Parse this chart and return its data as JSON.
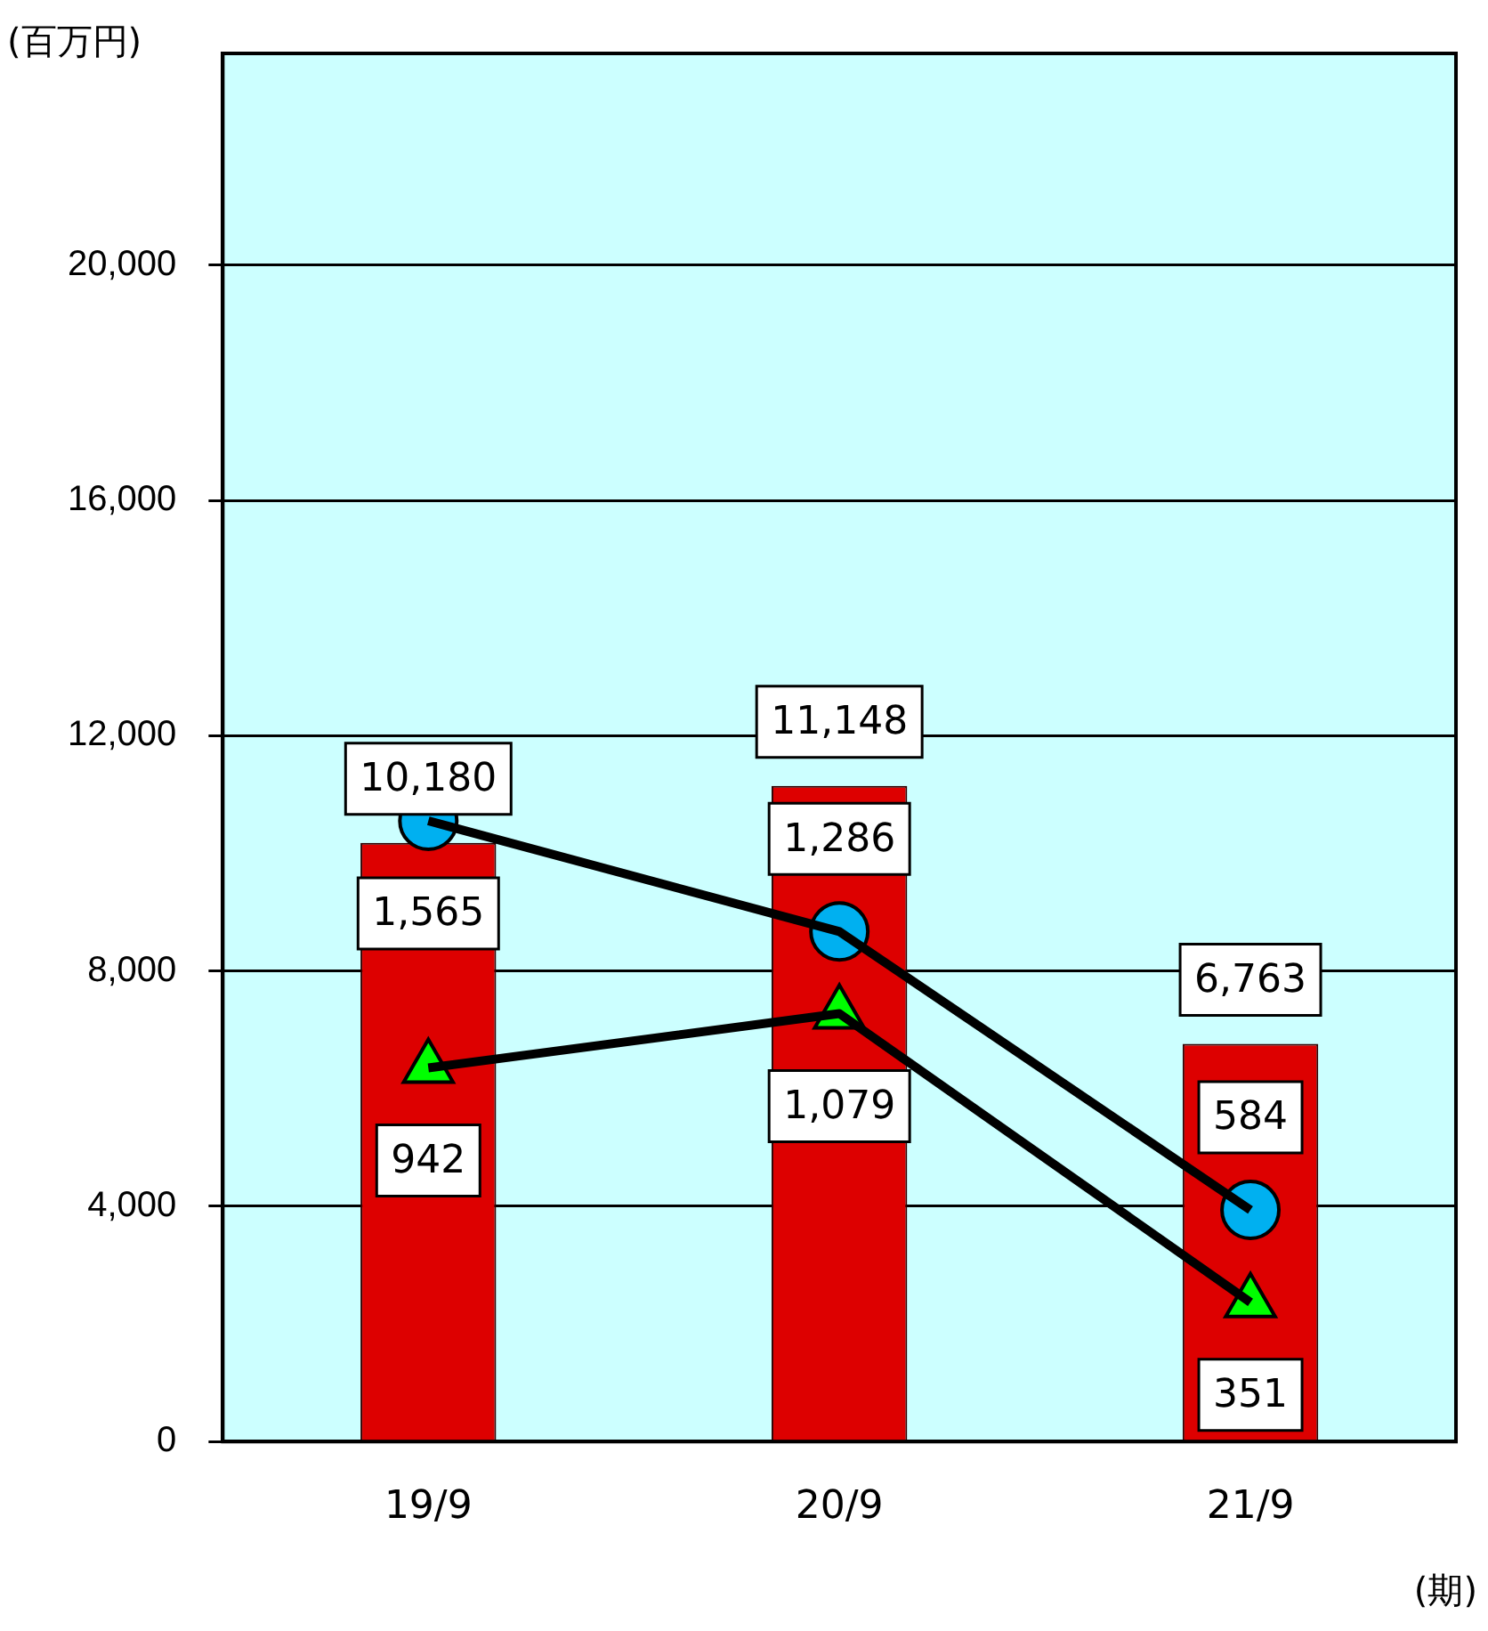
{
  "chart_data": {
    "type": "bar",
    "ylabel": "(百万円)",
    "xlabel": "(期)",
    "categories": [
      "19/9",
      "20/9",
      "21/9"
    ],
    "series": [
      {
        "color": "#dd0000",
        "values": [
          10180,
          11148,
          6763
        ],
        "value_labels": [
          "10,180",
          "11,148",
          "6,763"
        ]
      },
      {
        "type": "line",
        "axis": "y2",
        "marker": "circle",
        "color": "#00b0f0",
        "values": [
          1565,
          1286,
          584
        ],
        "value_labels": [
          "1,565",
          "1,286",
          "584"
        ]
      },
      {
        "type": "line",
        "axis": "y2",
        "marker": "triangle",
        "color": "#00ff00",
        "values": [
          942,
          1079,
          351
        ],
        "value_labels": [
          "942",
          "1,079",
          "351"
        ]
      }
    ],
    "ylim": [
      0,
      23600
    ],
    "yticks": [
      0,
      {
        "value": 4000,
        "label": "4,000"
      },
      {
        "value": 8000,
        "label": "8,000"
      },
      {
        "value": 12000,
        "label": "12,000"
      },
      {
        "value": 16000,
        "label": "16,000"
      },
      {
        "value": 20000,
        "label": "20,000"
      }
    ],
    "y2lim": [
      0,
      3500
    ],
    "grid": "y"
  }
}
